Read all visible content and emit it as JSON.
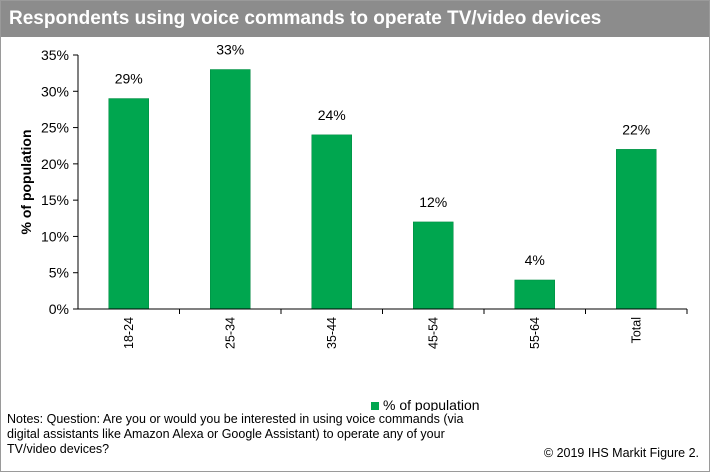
{
  "chart_data": {
    "type": "bar",
    "title": "Respondents using voice commands to operate TV/video devices",
    "ylabel": "% of population",
    "xlabel": "",
    "categories": [
      "18-24",
      "25-34",
      "35-44",
      "45-54",
      "55-64",
      "Total"
    ],
    "series": [
      {
        "name": "% of population",
        "values": [
          29,
          33,
          24,
          12,
          4,
          22
        ]
      }
    ],
    "data_labels": [
      "29%",
      "33%",
      "24%",
      "12%",
      "4%",
      "22%"
    ],
    "y_ticks": [
      "0%",
      "5%",
      "10%",
      "15%",
      "20%",
      "25%",
      "30%",
      "35%"
    ],
    "ylim": [
      0,
      35
    ],
    "grid": false,
    "legend_position": "bottom",
    "bar_color": "#00a64f"
  },
  "notes": "Notes: Question: Are you or would you be interested in using voice commands (via digital assistants like Amazon Alexa or Google Assistant) to operate any of your TV/video devices?",
  "footer": "© 2019 IHS Markit   Figure 2."
}
